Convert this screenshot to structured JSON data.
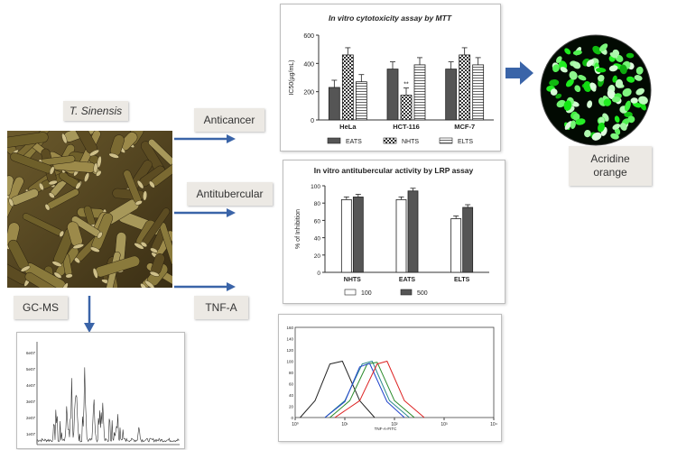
{
  "labels": {
    "species": "T. Sinensis",
    "anticancer": "Anticancer",
    "antitubercular": "Antitubercular",
    "gcms": "GC-MS",
    "tnfa": "TNF-A",
    "acridine": "Acridine orange"
  },
  "colors": {
    "arrow": "#3a64a8",
    "bar_dark": "#555555",
    "bar_light": "#ffffff",
    "fluor": "#2bd42b"
  },
  "icons": [
    "arrow-right-icon",
    "arrow-down-icon",
    "block-arrow-right-icon"
  ],
  "chart_data": [
    {
      "type": "bar",
      "title": "In vitro cytotoxicity assay by MTT",
      "ylabel": "IC50(µg/mL)",
      "ylim": [
        0,
        600
      ],
      "yticks": [
        "0",
        "200",
        "400",
        "600"
      ],
      "categories": [
        "HeLa",
        "HCT-116",
        "MCF-7"
      ],
      "series": [
        {
          "name": "EATS",
          "values": [
            230,
            360,
            360
          ]
        },
        {
          "name": "NHTS",
          "values": [
            460,
            175,
            460
          ]
        },
        {
          "name": "ELTS",
          "values": [
            270,
            390,
            390
          ]
        }
      ],
      "annotations": [
        "**"
      ],
      "legend": "bottom"
    },
    {
      "type": "bar",
      "title": "In vitro antitubercular activity by LRP assay",
      "ylabel": "% of Inhibition",
      "ylim": [
        0,
        100
      ],
      "yticks": [
        "0",
        "20",
        "40",
        "60",
        "80",
        "100"
      ],
      "categories": [
        "NHTS",
        "EATS",
        "ELTS"
      ],
      "series": [
        {
          "name": "100",
          "values": [
            84,
            84,
            62
          ]
        },
        {
          "name": "500",
          "values": [
            87,
            94,
            75
          ]
        }
      ],
      "legend": "bottom"
    },
    {
      "type": "line",
      "title": "",
      "xlabel": "TNF-A-FITC",
      "xticks": [
        "10⁰",
        "10¹",
        "10²",
        "10³",
        "10⁴"
      ],
      "yticks": [
        "0",
        "20",
        "40",
        "60",
        "80",
        "100",
        "120",
        "140",
        "160"
      ],
      "ylim": [
        0,
        160
      ],
      "series": [
        {
          "color": "#222222",
          "x": [
            0.1,
            0.4,
            0.7,
            0.95,
            1.3,
            1.6
          ],
          "y": [
            0,
            30,
            95,
            100,
            30,
            0
          ]
        },
        {
          "color": "#2a8a8a",
          "x": [
            0.6,
            1.0,
            1.35,
            1.55,
            1.9,
            2.3
          ],
          "y": [
            0,
            30,
            95,
            100,
            30,
            0
          ]
        },
        {
          "color": "#2a8a2a",
          "x": [
            0.7,
            1.1,
            1.45,
            1.65,
            2.0,
            2.4
          ],
          "y": [
            0,
            30,
            95,
            98,
            30,
            0
          ]
        },
        {
          "color": "#2244cc",
          "x": [
            0.6,
            1.0,
            1.3,
            1.5,
            1.85,
            2.2
          ],
          "y": [
            0,
            28,
            90,
            96,
            28,
            0
          ]
        },
        {
          "color": "#dd2222",
          "x": [
            0.8,
            1.3,
            1.65,
            1.85,
            2.2,
            2.6
          ],
          "y": [
            0,
            30,
            95,
            100,
            30,
            0
          ]
        }
      ]
    },
    {
      "type": "line",
      "title": "",
      "yticks": [
        "6e07",
        "5e07",
        "4e07",
        "3e07",
        "2e07",
        "1e07"
      ],
      "series": [
        {
          "name": "",
          "values": []
        }
      ]
    }
  ]
}
